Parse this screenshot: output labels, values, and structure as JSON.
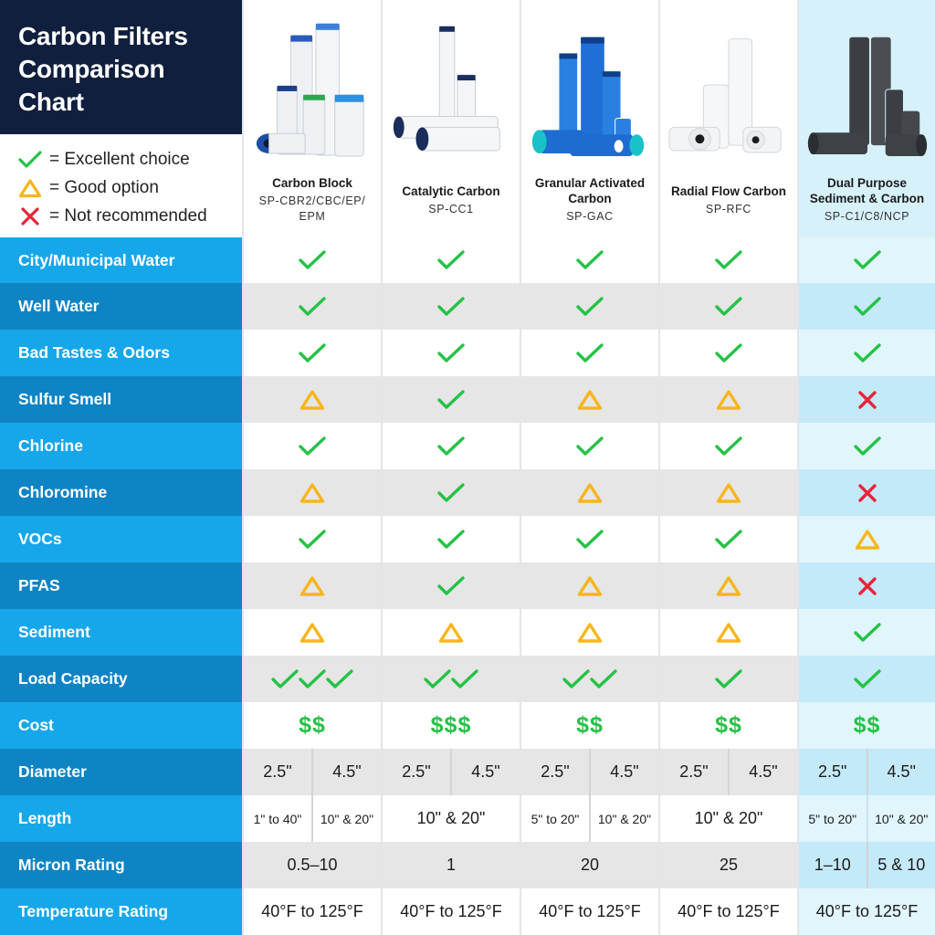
{
  "title": {
    "line1": "Carbon Filters",
    "line2": "Comparison",
    "line3": "Chart"
  },
  "legend": [
    {
      "icon": "check-icon",
      "label": "= Excellent choice"
    },
    {
      "icon": "triangle-icon",
      "label": "= Good option"
    },
    {
      "icon": "x-icon",
      "label": "= Not recommended"
    }
  ],
  "colors": {
    "navy": "#0f1f3d",
    "row_light": "#16a7ea",
    "row_dark": "#0e84c4",
    "check": "#25c247",
    "triangle": "#f6b61b",
    "cross": "#e8243a",
    "highlight": "#d7f1fb"
  },
  "chart_data": {
    "type": "table",
    "columns": [
      {
        "name": "Carbon Block",
        "sku": "SP-CBR2/CBC/EP/ EPM"
      },
      {
        "name": "Catalytic Carbon",
        "sku": "SP-CC1"
      },
      {
        "name": "Granular Activated Carbon",
        "sku": "SP-GAC"
      },
      {
        "name": "Radial Flow Carbon",
        "sku": "SP-RFC"
      },
      {
        "name": "Dual Purpose Sediment & Carbon",
        "sku": "SP-C1/C8/NCP"
      }
    ],
    "rows": [
      {
        "label": "City/Municipal Water",
        "cells": [
          "check",
          "check",
          "check",
          "check",
          "check"
        ]
      },
      {
        "label": "Well Water",
        "cells": [
          "check",
          "check",
          "check",
          "check",
          "check"
        ]
      },
      {
        "label": "Bad Tastes & Odors",
        "cells": [
          "check",
          "check",
          "check",
          "check",
          "check"
        ]
      },
      {
        "label": "Sulfur Smell",
        "cells": [
          "triangle",
          "check",
          "triangle",
          "triangle",
          "x"
        ]
      },
      {
        "label": "Chlorine",
        "cells": [
          "check",
          "check",
          "check",
          "check",
          "check"
        ]
      },
      {
        "label": "Chloromine",
        "cells": [
          "triangle",
          "check",
          "triangle",
          "triangle",
          "x"
        ]
      },
      {
        "label": "VOCs",
        "cells": [
          "check",
          "check",
          "check",
          "check",
          "triangle"
        ]
      },
      {
        "label": "PFAS",
        "cells": [
          "triangle",
          "check",
          "triangle",
          "triangle",
          "x"
        ]
      },
      {
        "label": "Sediment",
        "cells": [
          "triangle",
          "triangle",
          "triangle",
          "triangle",
          "check"
        ]
      },
      {
        "label": "Load Capacity",
        "cells": [
          "check check check",
          "check check",
          "check check",
          "check",
          "check"
        ]
      },
      {
        "label": "Cost",
        "cells": [
          "$$",
          "$$$",
          "$$",
          "$$",
          "$$"
        ]
      },
      {
        "label": "Diameter",
        "cells": [
          [
            "2.5\"",
            "4.5\""
          ],
          [
            "2.5\"",
            "4.5\""
          ],
          [
            "2.5\"",
            "4.5\""
          ],
          [
            "2.5\"",
            "4.5\""
          ],
          [
            "2.5\"",
            "4.5\""
          ]
        ]
      },
      {
        "label": "Length",
        "cells": [
          [
            "1\" to 40\"",
            "10\" & 20\""
          ],
          "10\" & 20\"",
          [
            "5\" to 20\"",
            "10\" & 20\""
          ],
          "10\" & 20\"",
          [
            "5\" to 20\"",
            "10\" & 20\""
          ]
        ]
      },
      {
        "label": "Micron Rating",
        "cells": [
          "0.5–10",
          "1",
          "20",
          "25",
          [
            "1–10",
            "5 & 10"
          ]
        ]
      },
      {
        "label": "Temperature Rating",
        "cells": [
          "40°F to 125°F",
          "40°F to 125°F",
          "40°F to 125°F",
          "40°F to 125°F",
          "40°F to 125°F"
        ]
      }
    ]
  }
}
